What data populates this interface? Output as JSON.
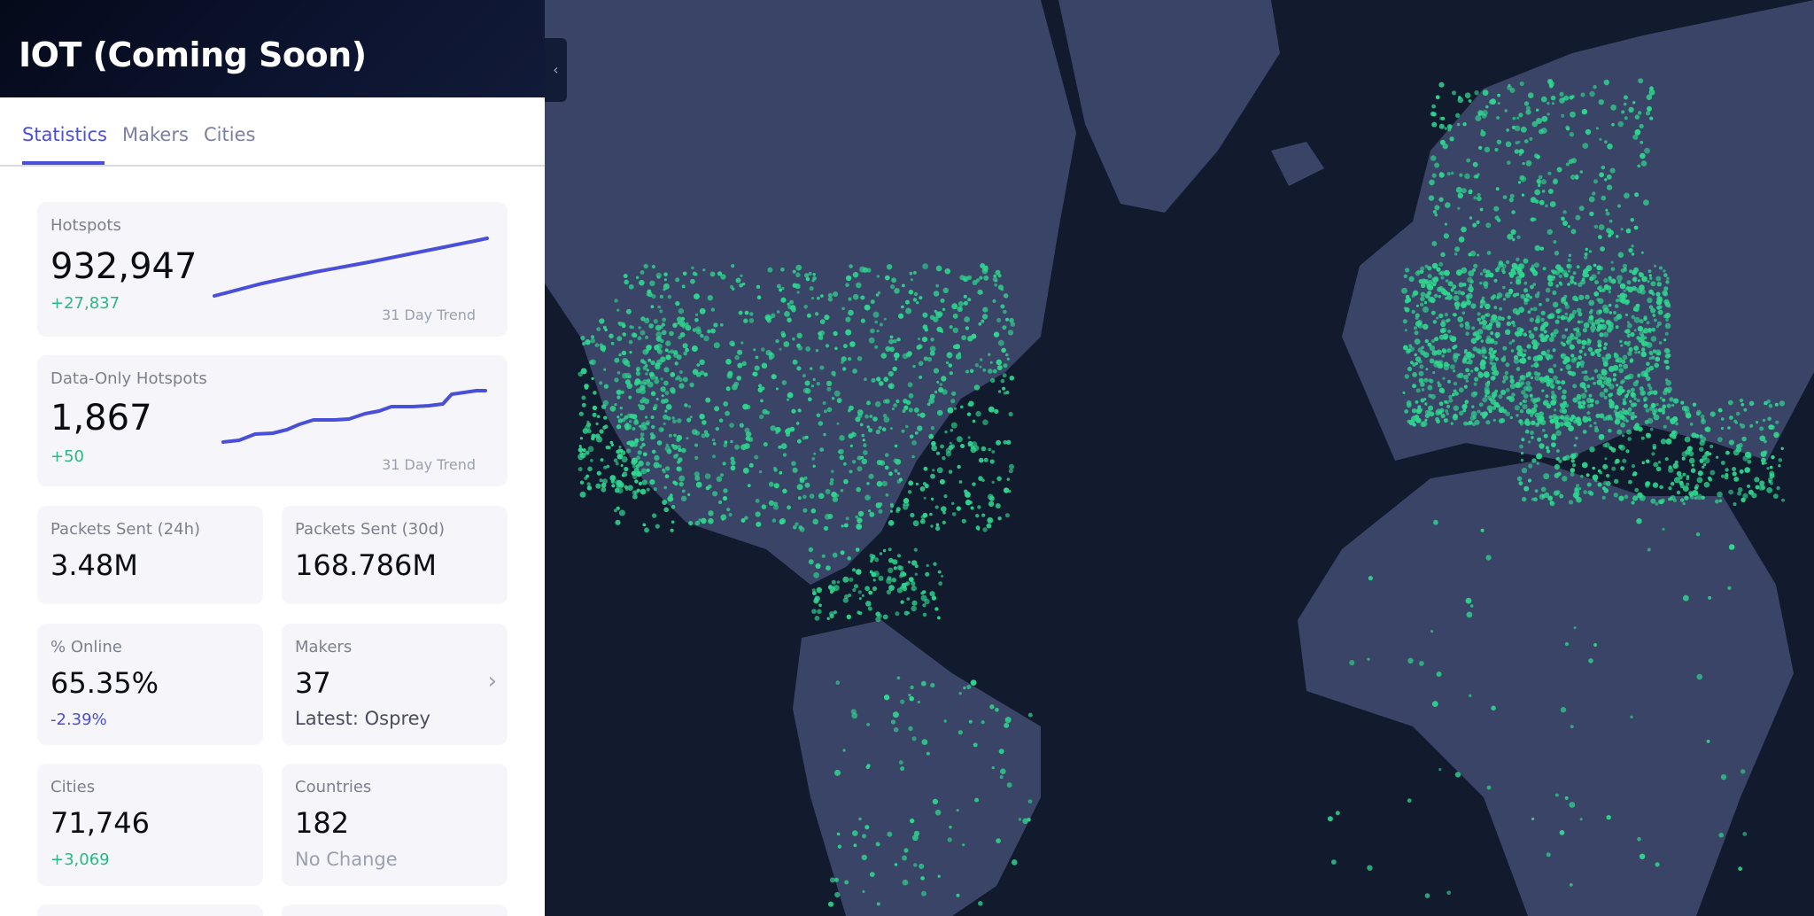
{
  "header": {
    "title": "IOT (Coming Soon)"
  },
  "tabs": [
    "Statistics",
    "Makers",
    "Cities"
  ],
  "stats": {
    "hotspots": {
      "label": "Hotspots",
      "value": "932,947",
      "change": "+27,837",
      "trend_label": "31 Day Trend"
    },
    "data_only_hotspots": {
      "label": "Data-Only Hotspots",
      "value": "1,867",
      "change": "+50",
      "trend_label": "31 Day Trend"
    },
    "packets_24h": {
      "label": "Packets Sent (24h)",
      "value": "3.48M"
    },
    "packets_30d": {
      "label": "Packets Sent (30d)",
      "value": "168.786M"
    },
    "online": {
      "label": "% Online",
      "value": "65.35%",
      "change": "-2.39%"
    },
    "makers": {
      "label": "Makers",
      "value": "37",
      "latest": "Latest: Osprey"
    },
    "cities": {
      "label": "Cities",
      "value": "71,746",
      "change": "+3,069"
    },
    "countries": {
      "label": "Countries",
      "value": "182",
      "change": "No Change"
    }
  }
}
